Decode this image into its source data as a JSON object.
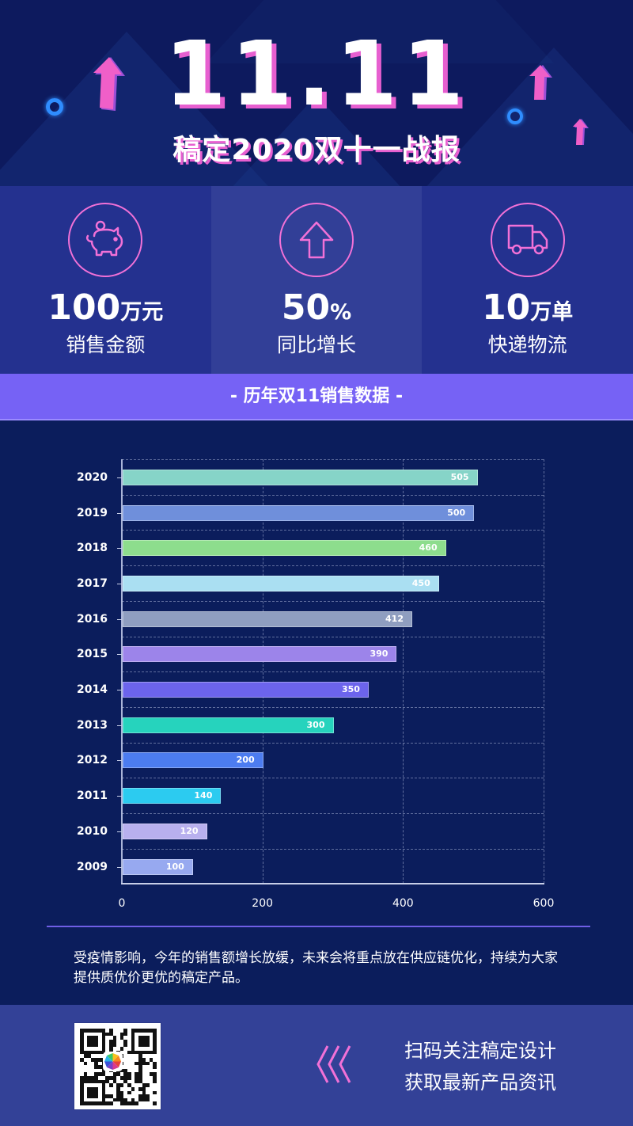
{
  "header": {
    "title": "11.11",
    "subtitle": "稿定2020双十一战报"
  },
  "stats": [
    {
      "icon": "piggy-bank-icon",
      "value": "100",
      "unit": "万元",
      "label": "销售金额"
    },
    {
      "icon": "arrow-up-icon",
      "value": "50",
      "unit": "%",
      "label": "同比增长"
    },
    {
      "icon": "truck-icon",
      "value": "10",
      "unit": "万单",
      "label": "快递物流"
    }
  ],
  "section": {
    "title": "- 历年双11销售数据 -"
  },
  "chart_data": {
    "type": "bar",
    "orientation": "horizontal",
    "title": "历年双11销售数据",
    "categories": [
      "2020",
      "2019",
      "2018",
      "2017",
      "2016",
      "2015",
      "2014",
      "2013",
      "2012",
      "2011",
      "2010",
      "2009"
    ],
    "values": [
      505,
      500,
      460,
      450,
      412,
      390,
      350,
      300,
      200,
      140,
      120,
      100
    ],
    "colors": [
      "#86d4c8",
      "#6f8fdb",
      "#8ddd8d",
      "#aadff2",
      "#8f9ec0",
      "#9c84ea",
      "#6c64ec",
      "#26d3bd",
      "#4c7cf0",
      "#2ccbf0",
      "#b8b0ee",
      "#97a9f0"
    ],
    "xlabel": "",
    "ylabel": "",
    "xlim": [
      0,
      600
    ],
    "xticks": [
      "0",
      "200",
      "400",
      "600"
    ],
    "grid": true,
    "data_labels": true,
    "legend": "none"
  },
  "note": "受疫情影响，今年的销售额增长放缓，未来会将重点放在供应链优化，持续为大家提供质优价更优的稿定产品。",
  "footer": {
    "cta_line1": "扫码关注稿定设计",
    "cta_line2": "获取最新产品资讯"
  },
  "colors": {
    "background": "#0b1d5c",
    "stats_bg": "#24318f",
    "stats_mid_bg": "#323f97",
    "accent_pink": "#f271d7",
    "section_bar": "#7662f5",
    "footer_bg": "#334197"
  }
}
